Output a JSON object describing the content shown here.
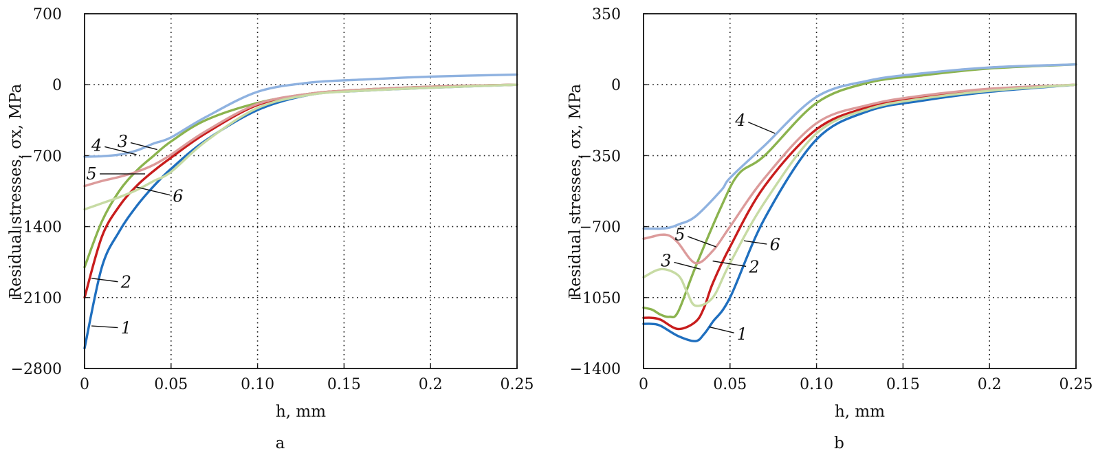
{
  "figure": {
    "panels": [
      "a",
      "b"
    ]
  },
  "colors": {
    "1": "#1f6fbf",
    "2": "#c81d1d",
    "3": "#8bb34e",
    "4": "#8fb2e0",
    "5": "#dc9b9b",
    "6": "#c7dba4"
  },
  "chart_data": [
    {
      "type": "line",
      "panel_label": "a",
      "xlabel": "h, mm",
      "ylabel": "Residual stresses, σx, MPa",
      "xlim": [
        0,
        0.25
      ],
      "ylim": [
        -2800,
        700
      ],
      "xticks": [
        0,
        0.05,
        0.1,
        0.15,
        0.2,
        0.25
      ],
      "xtick_labels": [
        "0",
        "0.05",
        "0.10",
        "0.15",
        "0.2",
        "0.25"
      ],
      "yticks": [
        700,
        0,
        -700,
        -1400,
        -2100,
        -2800
      ],
      "ytick_labels": [
        "700",
        "0",
        "−700",
        "−1400",
        "−2100",
        "−2800"
      ],
      "grid": true,
      "series": [
        {
          "name": "1",
          "x": [
            0,
            0.01,
            0.02,
            0.03,
            0.04,
            0.05,
            0.07,
            0.1,
            0.13,
            0.16,
            0.2,
            0.25
          ],
          "y": [
            -2600,
            -1800,
            -1450,
            -1200,
            -1000,
            -830,
            -550,
            -250,
            -100,
            -60,
            -30,
            0
          ]
        },
        {
          "name": "2",
          "x": [
            0,
            0.01,
            0.02,
            0.03,
            0.04,
            0.05,
            0.07,
            0.1,
            0.13,
            0.16,
            0.2,
            0.25
          ],
          "y": [
            -2100,
            -1500,
            -1200,
            -1000,
            -850,
            -720,
            -480,
            -200,
            -90,
            -50,
            -20,
            0
          ]
        },
        {
          "name": "3",
          "x": [
            0,
            0.01,
            0.02,
            0.03,
            0.04,
            0.05,
            0.07,
            0.1,
            0.13,
            0.16,
            0.2,
            0.25
          ],
          "y": [
            -1800,
            -1350,
            -1050,
            -850,
            -700,
            -560,
            -350,
            -180,
            -90,
            -50,
            -20,
            0
          ]
        },
        {
          "name": "4",
          "x": [
            0,
            0.01,
            0.02,
            0.03,
            0.04,
            0.05,
            0.07,
            0.1,
            0.13,
            0.16,
            0.2,
            0.25
          ],
          "y": [
            -710,
            -705,
            -690,
            -650,
            -580,
            -520,
            -320,
            -70,
            20,
            50,
            80,
            100
          ]
        },
        {
          "name": "5",
          "x": [
            0,
            0.01,
            0.02,
            0.03,
            0.04,
            0.05,
            0.07,
            0.1,
            0.13,
            0.16,
            0.2,
            0.25
          ],
          "y": [
            -1000,
            -950,
            -910,
            -860,
            -790,
            -690,
            -460,
            -190,
            -90,
            -50,
            -20,
            0
          ]
        },
        {
          "name": "6",
          "x": [
            0,
            0.01,
            0.02,
            0.03,
            0.04,
            0.05,
            0.07,
            0.1,
            0.13,
            0.16,
            0.2,
            0.25
          ],
          "y": [
            -1230,
            -1170,
            -1110,
            -1040,
            -950,
            -860,
            -560,
            -230,
            -100,
            -60,
            -30,
            0
          ]
        }
      ]
    },
    {
      "type": "line",
      "panel_label": "b",
      "xlabel": "h, mm",
      "ylabel": "Residual stresses, σx, MPa",
      "xlim": [
        0,
        0.25
      ],
      "ylim": [
        -1400,
        350
      ],
      "xticks": [
        0,
        0.05,
        0.1,
        0.15,
        0.2,
        0.25
      ],
      "xtick_labels": [
        "0",
        "0.05",
        "0.10",
        "0.15",
        "0.2",
        "0.25"
      ],
      "yticks": [
        350,
        0,
        -350,
        -700,
        -1050,
        -1400
      ],
      "ytick_labels": [
        "350",
        "0",
        "−350",
        "−700",
        "−1050",
        "−1400"
      ],
      "grid": true,
      "series": [
        {
          "name": "1",
          "x": [
            0,
            0.005,
            0.01,
            0.02,
            0.03,
            0.035,
            0.04,
            0.05,
            0.07,
            0.1,
            0.13,
            0.16,
            0.2,
            0.25
          ],
          "y": [
            -1180,
            -1180,
            -1190,
            -1240,
            -1265,
            -1230,
            -1170,
            -1050,
            -660,
            -270,
            -130,
            -80,
            -35,
            0
          ]
        },
        {
          "name": "2",
          "x": [
            0,
            0.005,
            0.01,
            0.02,
            0.03,
            0.035,
            0.04,
            0.05,
            0.07,
            0.1,
            0.13,
            0.16,
            0.2,
            0.25
          ],
          "y": [
            -1150,
            -1150,
            -1160,
            -1205,
            -1170,
            -1100,
            -980,
            -800,
            -500,
            -220,
            -110,
            -60,
            -25,
            0
          ]
        },
        {
          "name": "3",
          "x": [
            0,
            0.005,
            0.01,
            0.015,
            0.02,
            0.03,
            0.045,
            0.055,
            0.07,
            0.1,
            0.13,
            0.16,
            0.2,
            0.25
          ],
          "y": [
            -1100,
            -1110,
            -1135,
            -1145,
            -1120,
            -900,
            -600,
            -440,
            -350,
            -90,
            10,
            45,
            80,
            100
          ]
        },
        {
          "name": "4",
          "x": [
            0,
            0.005,
            0.01,
            0.015,
            0.02,
            0.03,
            0.045,
            0.05,
            0.07,
            0.1,
            0.13,
            0.16,
            0.2,
            0.25
          ],
          "y": [
            -710,
            -710,
            -710,
            -705,
            -690,
            -650,
            -520,
            -460,
            -300,
            -60,
            20,
            55,
            85,
            100
          ]
        },
        {
          "name": "5",
          "x": [
            0,
            0.005,
            0.01,
            0.015,
            0.02,
            0.03,
            0.04,
            0.05,
            0.07,
            0.1,
            0.13,
            0.16,
            0.2,
            0.25
          ],
          "y": [
            -760,
            -750,
            -740,
            -745,
            -780,
            -880,
            -820,
            -700,
            -460,
            -190,
            -100,
            -55,
            -20,
            0
          ]
        },
        {
          "name": "6",
          "x": [
            0,
            0.01,
            0.02,
            0.025,
            0.03,
            0.04,
            0.05,
            0.07,
            0.1,
            0.13,
            0.16,
            0.2,
            0.25
          ],
          "y": [
            -950,
            -910,
            -940,
            -1020,
            -1090,
            -1050,
            -880,
            -580,
            -240,
            -120,
            -70,
            -30,
            0
          ]
        }
      ]
    }
  ],
  "annotations": [
    [
      {
        "text": "1",
        "series": "1",
        "x": 0.024,
        "y": -2400,
        "pt_x": 0.004,
        "pt_y": -2380
      },
      {
        "text": "2",
        "series": "2",
        "x": 0.024,
        "y": -1950,
        "pt_x": 0.004,
        "pt_y": -1910
      },
      {
        "text": "3",
        "series": "3",
        "x": 0.022,
        "y": -560,
        "pt_x": 0.042,
        "pt_y": -640
      },
      {
        "text": "4",
        "series": "4",
        "x": 0.007,
        "y": -600,
        "pt_x": 0.03,
        "pt_y": -690
      },
      {
        "text": "5",
        "series": "5",
        "x": 0.004,
        "y": -880,
        "pt_x": 0.035,
        "pt_y": -880
      },
      {
        "text": "6",
        "series": "6",
        "x": 0.054,
        "y": -1100,
        "pt_x": 0.03,
        "pt_y": -1010
      }
    ],
    [
      {
        "text": "1",
        "series": "1",
        "x": 0.057,
        "y": -1230,
        "pt_x": 0.038,
        "pt_y": -1195
      },
      {
        "text": "2",
        "series": "2",
        "x": 0.064,
        "y": -900,
        "pt_x": 0.04,
        "pt_y": -870
      },
      {
        "text": "3",
        "series": "3",
        "x": 0.013,
        "y": -870,
        "pt_x": 0.033,
        "pt_y": -910
      },
      {
        "text": "4",
        "series": "4",
        "x": 0.056,
        "y": -175,
        "pt_x": 0.076,
        "pt_y": -240
      },
      {
        "text": "5",
        "series": "5",
        "x": 0.021,
        "y": -740,
        "pt_x": 0.042,
        "pt_y": -800
      },
      {
        "text": "6",
        "series": "6",
        "x": 0.076,
        "y": -790,
        "pt_x": 0.058,
        "pt_y": -770
      }
    ]
  ]
}
